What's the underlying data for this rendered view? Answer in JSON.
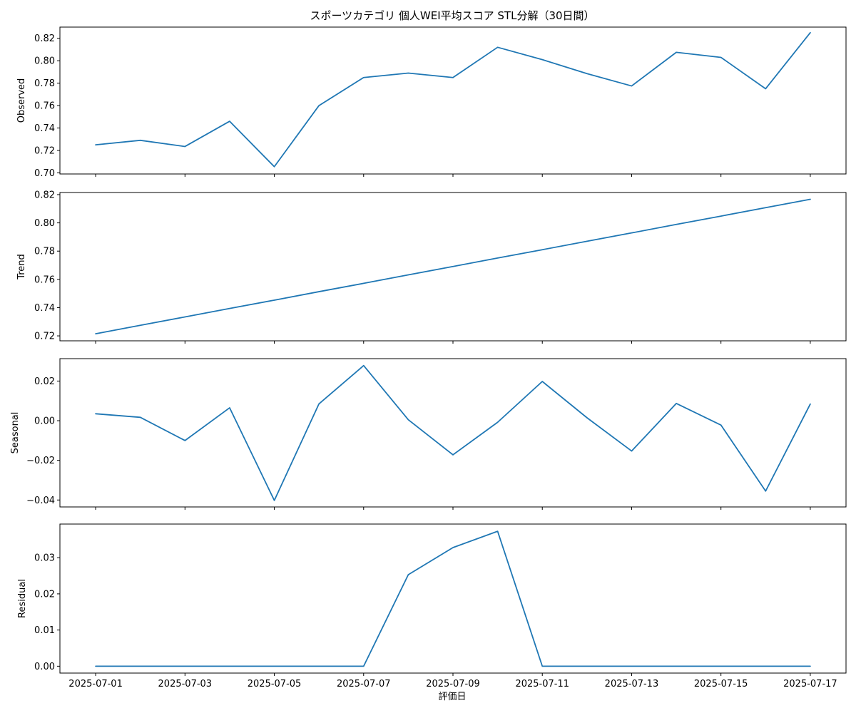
{
  "figure": {
    "title": "スポーツカテゴリ 個人WEI平均スコア STL分解（30日間）",
    "xlabel": "評価日"
  },
  "colors": {
    "line": "#1f77b4",
    "axes": "#000000"
  },
  "chart_data": [
    {
      "type": "line",
      "ylabel": "Observed",
      "x": [
        "2025-07-01",
        "2025-07-02",
        "2025-07-03",
        "2025-07-04",
        "2025-07-05",
        "2025-07-06",
        "2025-07-07",
        "2025-07-08",
        "2025-07-09",
        "2025-07-10",
        "2025-07-11",
        "2025-07-12",
        "2025-07-13",
        "2025-07-14",
        "2025-07-15",
        "2025-07-16",
        "2025-07-17"
      ],
      "values": [
        0.725,
        0.729,
        0.7235,
        0.746,
        0.7055,
        0.76,
        0.785,
        0.789,
        0.785,
        0.812,
        0.801,
        0.7885,
        0.7775,
        0.8075,
        0.803,
        0.775,
        0.825
      ],
      "ylim": [
        0.699,
        0.83
      ],
      "yticks": [
        0.7,
        0.72,
        0.74,
        0.76,
        0.78,
        0.8,
        0.82
      ],
      "ytick_labels": [
        "0.70",
        "0.72",
        "0.74",
        "0.76",
        "0.78",
        "0.80",
        "0.82"
      ]
    },
    {
      "type": "line",
      "ylabel": "Trend",
      "x": [
        "2025-07-01",
        "2025-07-02",
        "2025-07-03",
        "2025-07-04",
        "2025-07-05",
        "2025-07-06",
        "2025-07-07",
        "2025-07-08",
        "2025-07-09",
        "2025-07-10",
        "2025-07-11",
        "2025-07-12",
        "2025-07-13",
        "2025-07-14",
        "2025-07-15",
        "2025-07-16",
        "2025-07-17"
      ],
      "values": [
        0.7215,
        0.7275,
        0.7334,
        0.7394,
        0.7453,
        0.7513,
        0.7572,
        0.7632,
        0.7691,
        0.7751,
        0.781,
        0.787,
        0.7929,
        0.7989,
        0.8048,
        0.8108,
        0.8167
      ],
      "ylim": [
        0.7165,
        0.8215
      ],
      "yticks": [
        0.72,
        0.74,
        0.76,
        0.78,
        0.8,
        0.82
      ],
      "ytick_labels": [
        "0.72",
        "0.74",
        "0.76",
        "0.78",
        "0.80",
        "0.82"
      ]
    },
    {
      "type": "line",
      "ylabel": "Seasonal",
      "x": [
        "2025-07-01",
        "2025-07-02",
        "2025-07-03",
        "2025-07-04",
        "2025-07-05",
        "2025-07-06",
        "2025-07-07",
        "2025-07-08",
        "2025-07-09",
        "2025-07-10",
        "2025-07-11",
        "2025-07-12",
        "2025-07-13",
        "2025-07-14",
        "2025-07-15",
        "2025-07-16",
        "2025-07-17"
      ],
      "values": [
        0.0035,
        0.0017,
        -0.01,
        0.0065,
        -0.0402,
        0.0085,
        0.0278,
        0.0005,
        -0.0172,
        -0.0008,
        0.0198,
        0.0015,
        -0.0153,
        0.0087,
        -0.0022,
        -0.0355,
        0.0084
      ],
      "ylim": [
        -0.0435,
        0.0313
      ],
      "yticks": [
        -0.04,
        -0.02,
        0.0,
        0.02
      ],
      "ytick_labels": [
        "−0.04",
        "−0.02",
        "0.00",
        "0.02"
      ]
    },
    {
      "type": "line",
      "ylabel": "Residual",
      "x": [
        "2025-07-01",
        "2025-07-02",
        "2025-07-03",
        "2025-07-04",
        "2025-07-05",
        "2025-07-06",
        "2025-07-07",
        "2025-07-08",
        "2025-07-09",
        "2025-07-10",
        "2025-07-11",
        "2025-07-12",
        "2025-07-13",
        "2025-07-14",
        "2025-07-15",
        "2025-07-16",
        "2025-07-17"
      ],
      "values": [
        0,
        0,
        0,
        0,
        0,
        0,
        0,
        0.0253,
        0.0328,
        0.0373,
        0,
        0,
        0,
        0,
        0,
        0,
        0
      ],
      "ylim": [
        -0.0019,
        0.0393
      ],
      "yticks": [
        0.0,
        0.01,
        0.02,
        0.03
      ],
      "ytick_labels": [
        "0.00",
        "0.01",
        "0.02",
        "0.03"
      ]
    }
  ],
  "xticks": [
    "2025-07-01",
    "2025-07-03",
    "2025-07-05",
    "2025-07-07",
    "2025-07-09",
    "2025-07-11",
    "2025-07-13",
    "2025-07-15",
    "2025-07-17"
  ]
}
